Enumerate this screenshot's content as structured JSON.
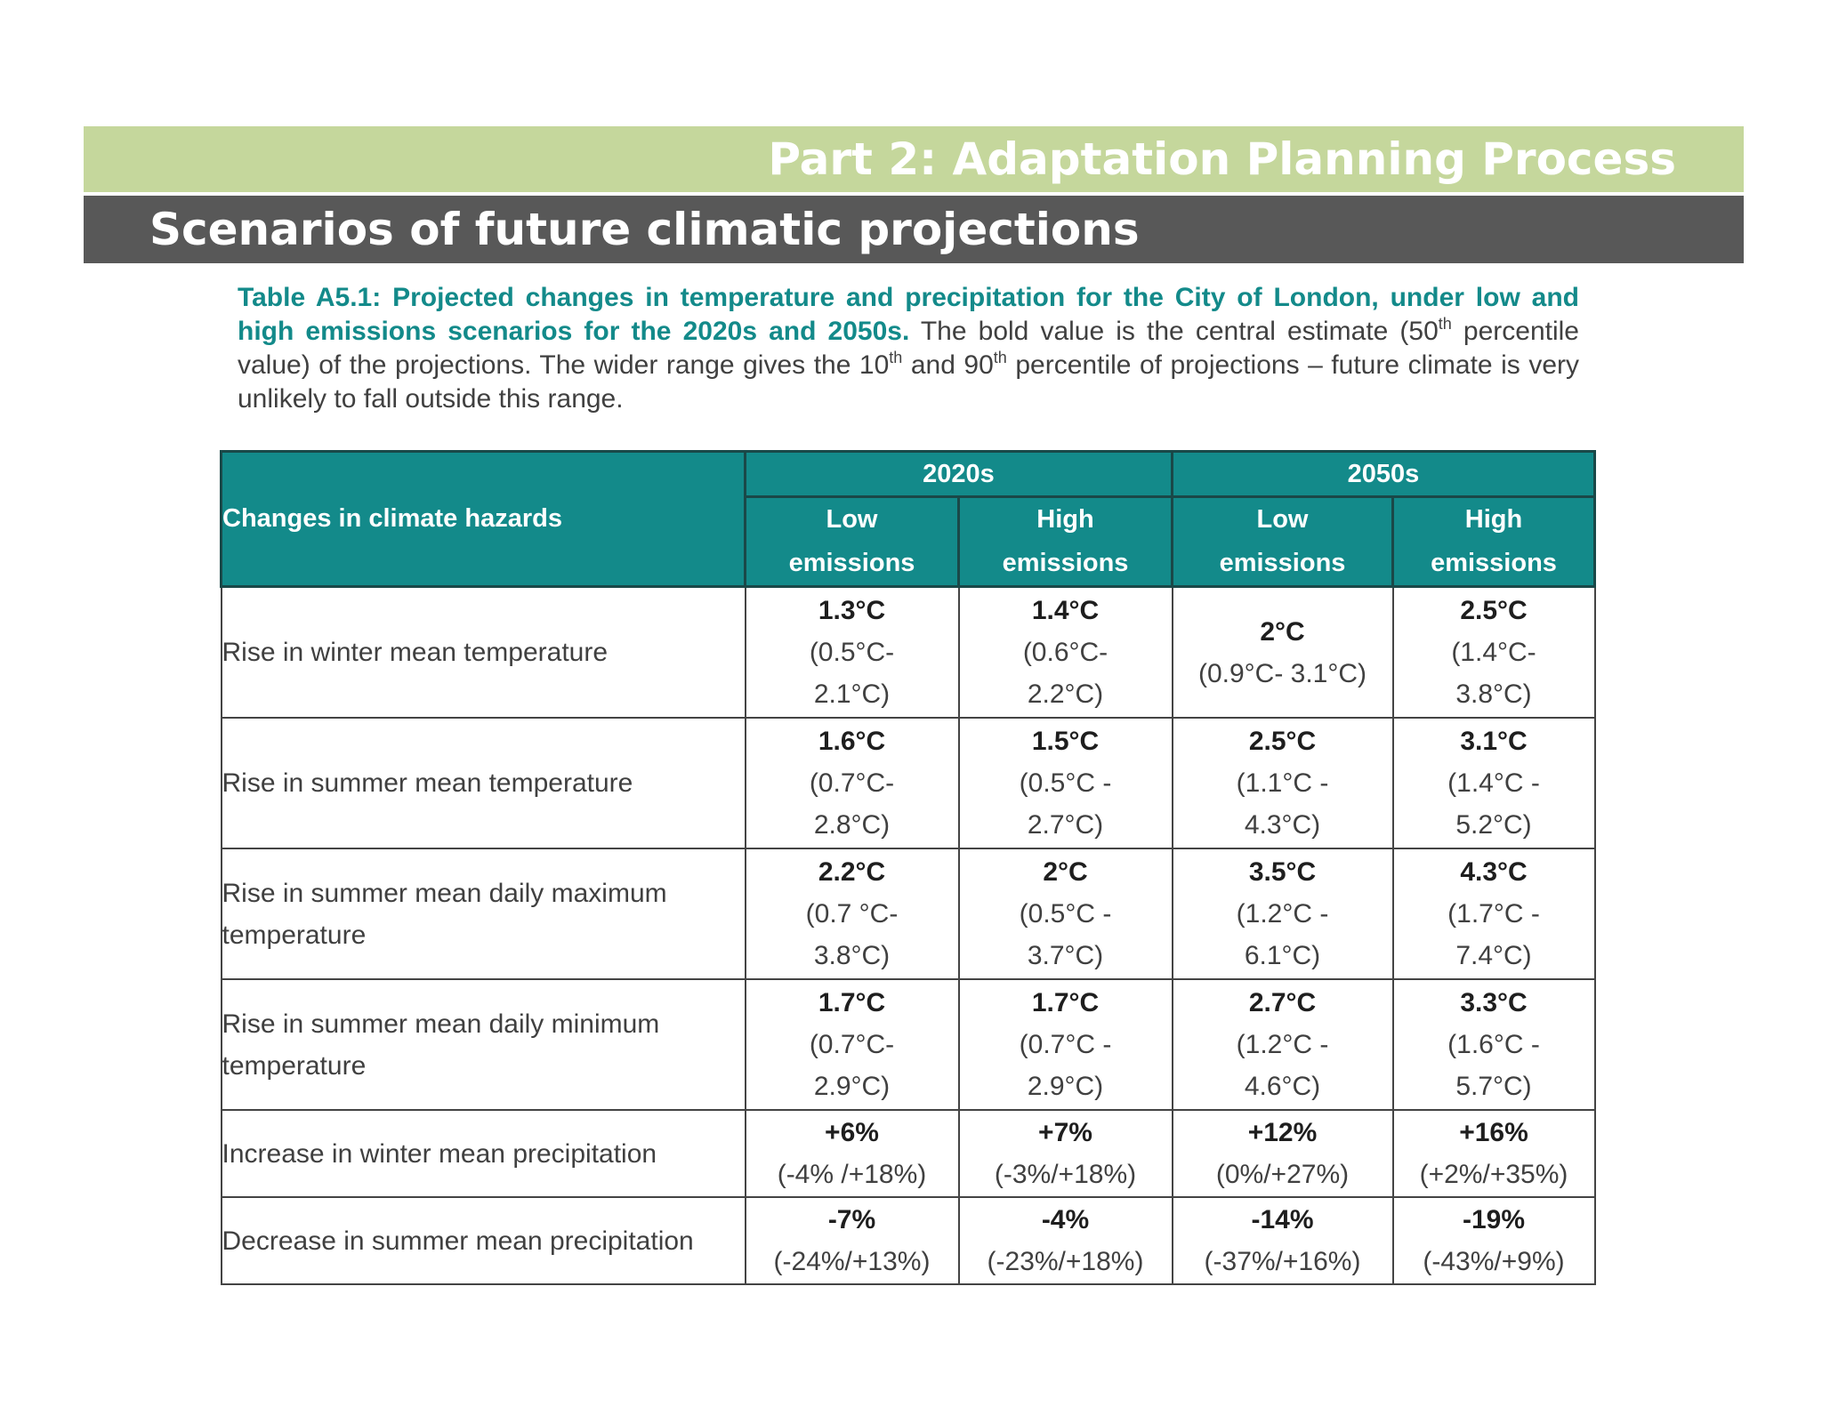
{
  "header": {
    "part_title": "Part 2: Adaptation Planning Process",
    "slide_title": "Scenarios of future climatic projections"
  },
  "caption": {
    "bold_lead": "Table A5.1: Projected changes in temperature and precipitation for the City of London, under low and high emissions scenarios for the 2020s and 2050s.",
    "text_a": " The bold value is the central estimate (50",
    "sup_a": "th",
    "text_b": " percentile value) of the projections. The wider range gives the 10",
    "sup_b": "th",
    "text_c": " and 90",
    "sup_c": "th",
    "text_d": " percentile of projections – future climate is very unlikely to fall outside this range."
  },
  "table": {
    "hazard_header": "Changes in climate hazards",
    "periods": [
      "2020s",
      "2050s"
    ],
    "emission_headers": [
      {
        "line1": "Low",
        "line2": "emissions"
      },
      {
        "line1": "High",
        "line2": "emissions"
      },
      {
        "line1": "Low",
        "line2": "emissions"
      },
      {
        "line1": "High",
        "line2": "emissions"
      }
    ],
    "rows": [
      {
        "hazard": "Rise in winter mean temperature",
        "cells": [
          {
            "central": "1.3°C",
            "range1": "(0.5°C-",
            "range2": "2.1°C)"
          },
          {
            "central": "1.4°C",
            "range1": "(0.6°C-",
            "range2": "2.2°C)"
          },
          {
            "central": "2°C",
            "range1": "(0.9°C- 3.1°C)",
            "range2": ""
          },
          {
            "central": "2.5°C",
            "range1": "(1.4°C-",
            "range2": "3.8°C)"
          }
        ]
      },
      {
        "hazard": "Rise in summer mean temperature",
        "cells": [
          {
            "central": "1.6°C",
            "range1": "(0.7°C-",
            "range2": "2.8°C)"
          },
          {
            "central": "1.5°C",
            "range1": "(0.5°C -",
            "range2": "2.7°C)"
          },
          {
            "central": "2.5°C",
            "range1": "(1.1°C -",
            "range2": "4.3°C)"
          },
          {
            "central": "3.1°C",
            "range1": "(1.4°C -",
            "range2": "5.2°C)"
          }
        ]
      },
      {
        "hazard": "Rise in summer mean daily maximum temperature",
        "cells": [
          {
            "central": "2.2°C",
            "range1": "(0.7 °C-",
            "range2": "3.8°C)"
          },
          {
            "central": "2°C",
            "range1": "(0.5°C -",
            "range2": "3.7°C)"
          },
          {
            "central": "3.5°C",
            "range1": "(1.2°C -",
            "range2": "6.1°C)"
          },
          {
            "central": "4.3°C",
            "range1": "(1.7°C -",
            "range2": "7.4°C)"
          }
        ]
      },
      {
        "hazard": "Rise in summer mean daily minimum temperature",
        "cells": [
          {
            "central": "1.7°C",
            "range1": "(0.7°C-",
            "range2": "2.9°C)"
          },
          {
            "central": "1.7°C",
            "range1": "(0.7°C -",
            "range2": "2.9°C)"
          },
          {
            "central": "2.7°C",
            "range1": "(1.2°C -",
            "range2": "4.6°C)"
          },
          {
            "central": "3.3°C",
            "range1": "(1.6°C -",
            "range2": "5.7°C)"
          }
        ]
      },
      {
        "hazard": "Increase in winter mean precipitation",
        "cells": [
          {
            "central": "+6%",
            "range1": "(-4% /+18%)",
            "range2": ""
          },
          {
            "central": "+7%",
            "range1": "(-3%/+18%)",
            "range2": ""
          },
          {
            "central": "+12%",
            "range1": "(0%/+27%)",
            "range2": ""
          },
          {
            "central": "+16%",
            "range1": "(+2%/+35%)",
            "range2": ""
          }
        ]
      },
      {
        "hazard": "Decrease in summer mean precipitation",
        "cells": [
          {
            "central": "-7%",
            "range1": "(-24%/+13%)",
            "range2": ""
          },
          {
            "central": "-4%",
            "range1": "(-23%/+18%)",
            "range2": ""
          },
          {
            "central": "-14%",
            "range1": "(-37%/+16%)",
            "range2": ""
          },
          {
            "central": "-19%",
            "range1": "(-43%/+9%)",
            "range2": ""
          }
        ]
      }
    ]
  }
}
